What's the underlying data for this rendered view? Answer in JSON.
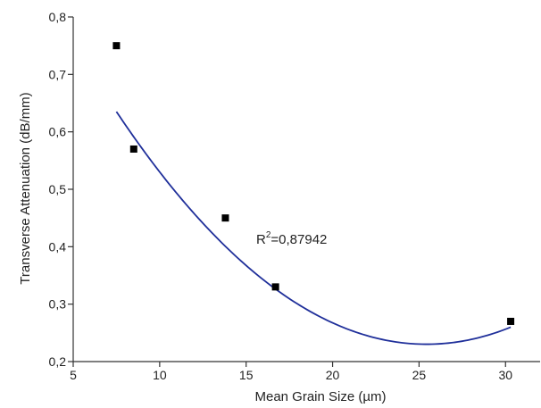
{
  "chart_data": {
    "type": "scatter",
    "title": "",
    "xlabel": "Mean Grain Size (µm)",
    "ylabel": "Transverse Attenuation (dB/mm)",
    "xlim": [
      5,
      32
    ],
    "ylim": [
      0.2,
      0.8
    ],
    "x_ticks": [
      5,
      10,
      15,
      20,
      25,
      30
    ],
    "x_tick_labels": [
      "5",
      "10",
      "15",
      "20",
      "25",
      "30"
    ],
    "y_ticks": [
      0.2,
      0.3,
      0.4,
      0.5,
      0.6,
      0.7,
      0.8
    ],
    "y_tick_labels": [
      "0,2",
      "0,3",
      "0,4",
      "0,5",
      "0,6",
      "0,7",
      "0,8"
    ],
    "grid": false,
    "legend": "none",
    "points": [
      {
        "x": 7.5,
        "y": 0.75
      },
      {
        "x": 8.5,
        "y": 0.57
      },
      {
        "x": 13.8,
        "y": 0.45
      },
      {
        "x": 16.7,
        "y": 0.33
      },
      {
        "x": 30.3,
        "y": 0.27
      }
    ],
    "fit": {
      "type": "polynomial",
      "degree": 2,
      "coefficients": [
        1.0445,
        -0.06402,
        0.0012583
      ],
      "x_range": [
        7.5,
        30.3
      ],
      "color": "#1f2f9a"
    },
    "annotation": {
      "r2_prefix": "R",
      "r2_sup": "2",
      "r2_value": "=0,87942"
    },
    "marker_color": "#000000"
  }
}
